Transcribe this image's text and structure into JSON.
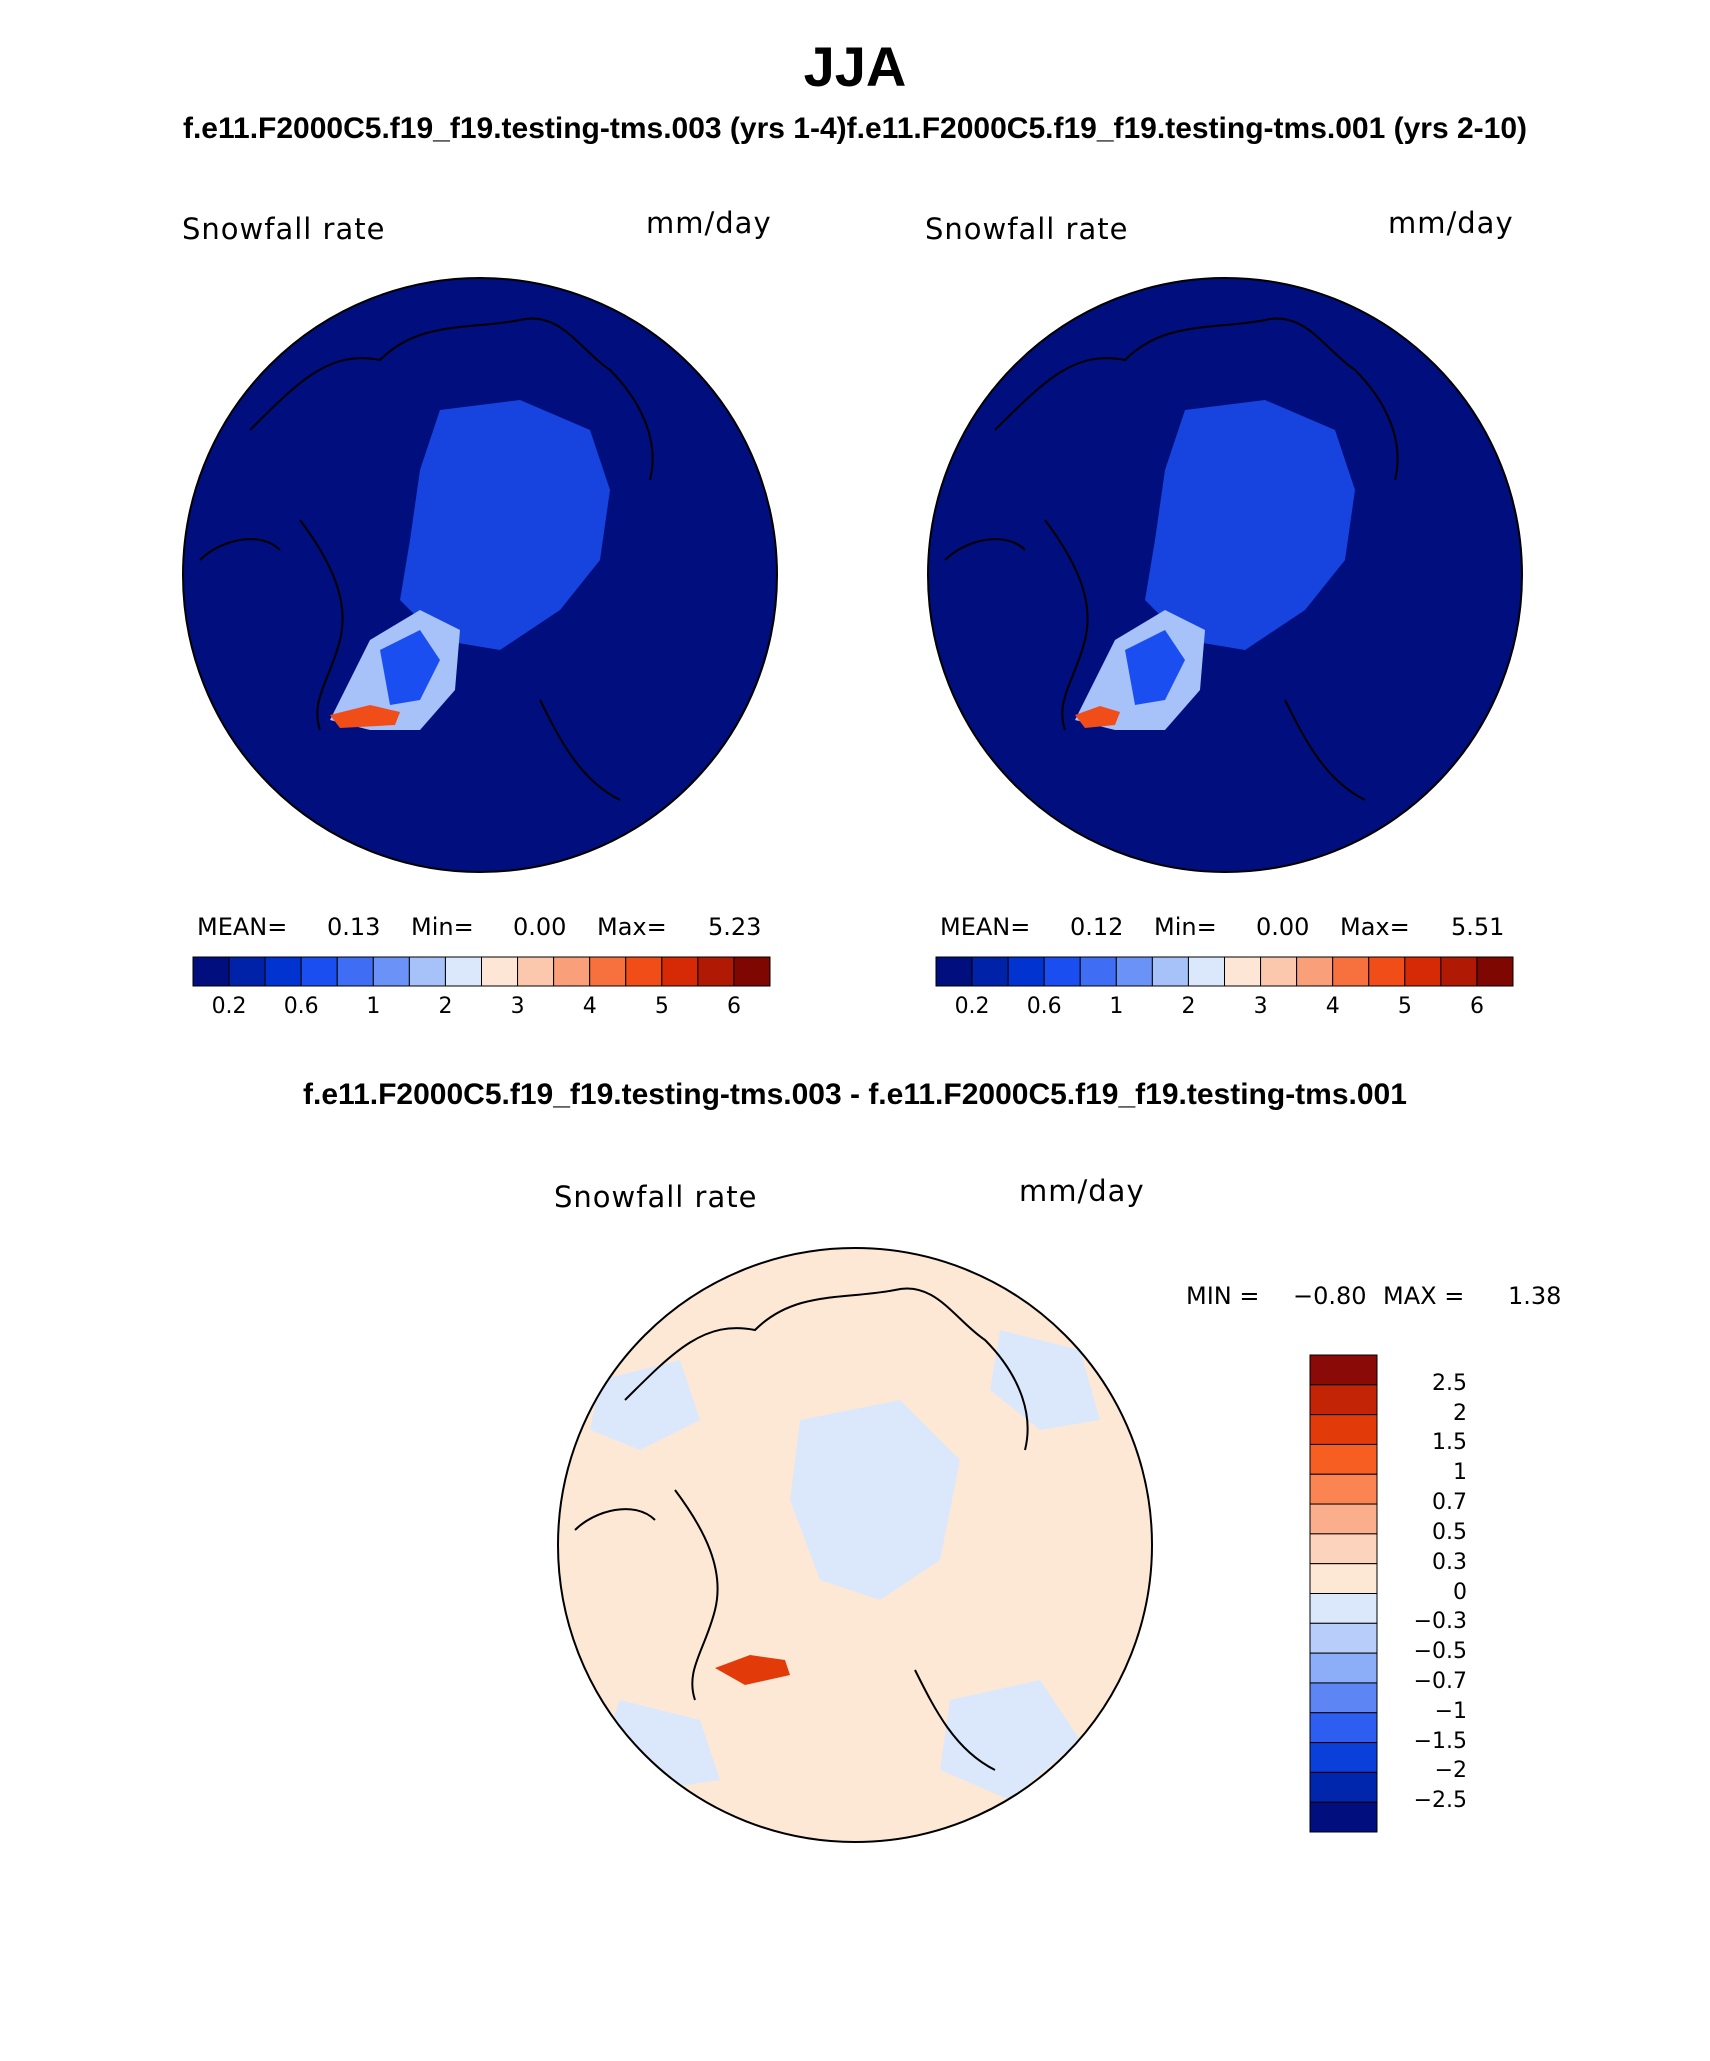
{
  "title": "JJA",
  "case_a_label": "f.e11.F2000C5.f19_f19.testing-tms.003 (yrs 1-4)",
  "case_b_label": "f.e11.F2000C5.f19_f19.testing-tms.001 (yrs 2-10)",
  "diff_title": "f.e11.F2000C5.f19_f19.testing-tms.003 - f.e11.F2000C5.f19_f19.testing-tms.001",
  "panels": [
    {
      "variable": "Snowfall rate",
      "units": "mm/day",
      "mean_label": "MEAN=",
      "mean": "0.13",
      "min_label": "Min=",
      "min": "0.00",
      "max_label": "Max=",
      "max": "5.23"
    },
    {
      "variable": "Snowfall rate",
      "units": "mm/day",
      "mean_label": "MEAN=",
      "mean": "0.12",
      "min_label": "Min=",
      "min": "0.00",
      "max_label": "Max=",
      "max": "5.51"
    }
  ],
  "diff_panel": {
    "variable": "Snowfall rate",
    "units": "mm/day",
    "min_label": "MIN =",
    "min": "−0.80",
    "max_label": "MAX =",
    "max": "1.38"
  },
  "colorbar_main": {
    "colors": [
      "#000e7e",
      "#0022a8",
      "#0033cf",
      "#1b4ef0",
      "#3f6ef5",
      "#6b93f7",
      "#a7c2f9",
      "#dbe8fc",
      "#fde6d5",
      "#fcc8ad",
      "#f9a07b",
      "#f7713f",
      "#f14d18",
      "#d52a05",
      "#b01a04",
      "#7e0702"
    ],
    "tick_labels": [
      "0.2",
      "0.6",
      "1",
      "2",
      "3",
      "4",
      "5",
      "6"
    ]
  },
  "colorbar_diff": {
    "colors_top_to_bottom": [
      "#8a0a08",
      "#c42406",
      "#e33a0a",
      "#f75e22",
      "#fb8552",
      "#fbae8c",
      "#fcd3bc",
      "#fde8d6",
      "#dbe8fc",
      "#b8cdfa",
      "#8cadf7",
      "#5d85f3",
      "#2d5ef0",
      "#0a3fd9",
      "#0026ae",
      "#000e7e"
    ],
    "tick_labels": [
      "2.5",
      "2",
      "1.5",
      "1",
      "0.7",
      "0.5",
      "0.3",
      "0",
      "−0.3",
      "−0.5",
      "−0.7",
      "−1",
      "−1.5",
      "−2",
      "−2.5"
    ]
  },
  "map_colors": {
    "ocean_low": "#000e7e",
    "snow_mid": "#1b4ef0",
    "snow_high": "#a7c2f9",
    "snow_peak": "#f14d18",
    "diff_pos": "#fde8d6",
    "diff_neg": "#dbe8fc",
    "diff_peak": "#e33a0a",
    "coast": "#000000"
  }
}
